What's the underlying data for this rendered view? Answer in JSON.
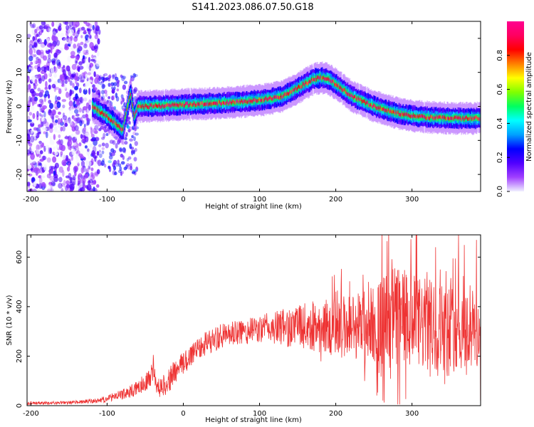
{
  "title": "S141.2023.086.07.50.G18",
  "chart_data": [
    {
      "type": "heatmap",
      "title": "S141.2023.086.07.50.G18",
      "xlabel": "Height of straight line (km)",
      "ylabel": "Frequency (Hz)",
      "xlim": [
        -205,
        390
      ],
      "ylim": [
        -25,
        25
      ],
      "x_ticks": [
        -200,
        -100,
        0,
        100,
        200,
        300
      ],
      "y_ticks": [
        -20,
        -10,
        0,
        10,
        20
      ],
      "colorbar": {
        "label": "Normalized spectral amplitude",
        "range": [
          0.0,
          1.0
        ],
        "ticks": [
          0.0,
          0.2,
          0.4,
          0.6,
          0.8
        ],
        "colormap": [
          "#f0f0ff",
          "#a040ff",
          "#5000ff",
          "#0000ff",
          "#00a0ff",
          "#00ffff",
          "#00ff60",
          "#80ff00",
          "#ffff00",
          "#ff8000",
          "#ff0000",
          "#ff0060",
          "#ff0090"
        ]
      },
      "ridge": {
        "x": [
          -120,
          -100,
          -90,
          -80,
          -70,
          -65,
          -60,
          -50,
          0,
          50,
          100,
          130,
          150,
          170,
          180,
          190,
          200,
          220,
          250,
          280,
          300,
          320,
          340,
          360,
          380,
          390
        ],
        "y": [
          0,
          -3,
          -5,
          -7,
          4,
          -3,
          0,
          0,
          0.5,
          1,
          1.8,
          3,
          5.5,
          8,
          8.5,
          8,
          6.5,
          3,
          0,
          -2,
          -2.8,
          -3.2,
          -3.4,
          -3.5,
          -3.5,
          -3.5
        ]
      }
    },
    {
      "type": "line",
      "xlabel": "Height of straight line (km)",
      "ylabel": "SNR (10 * v/v)",
      "xlim": [
        -205,
        390
      ],
      "ylim": [
        0,
        690
      ],
      "x_ticks": [
        -200,
        -100,
        0,
        100,
        200,
        300
      ],
      "y_ticks": [
        0,
        200,
        400,
        600
      ],
      "color": "#ee3333",
      "envelope": {
        "x": [
          -205,
          -150,
          -110,
          -80,
          -60,
          -45,
          -40,
          -35,
          -30,
          -20,
          -10,
          0,
          20,
          50,
          100,
          150,
          200,
          250,
          280,
          300,
          340,
          390
        ],
        "mean": [
          10,
          12,
          20,
          45,
          70,
          110,
          160,
          80,
          70,
          100,
          140,
          170,
          240,
          280,
          310,
          320,
          320,
          330,
          360,
          330,
          320,
          300
        ],
        "spread": [
          6,
          6,
          10,
          20,
          30,
          40,
          70,
          30,
          40,
          50,
          50,
          50,
          50,
          50,
          55,
          90,
          120,
          160,
          220,
          200,
          180,
          170
        ]
      }
    }
  ]
}
